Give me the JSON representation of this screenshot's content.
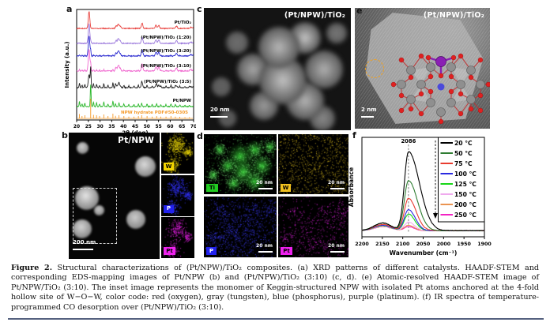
{
  "page": {
    "caption_label": "Figure 2.",
    "caption_text": " Structural characterizations of (Pt/NPW)/TiO₂ composites. (a) XRD patterns of different catalysts. HAADF-STEM and corresponding EDS-mapping images of Pt/NPW (b) and (Pt/NPW)/TiO₂ (3:10) (c, d). (e) Atomic-resolved HAADF-STEM image of Pt/NPW/TiO₂ (3:10). The inset image represents the monomer of Keggin-structured NPW with isolated Pt atoms anchored at the 4-fold hollow site of W−O−W, color code: red (oxygen), gray (tungsten), blue (phosphorus), purple (platinum). (f) IR spectra of temperature-programmed CO desorption over (Pt/NPW)/TiO₂ (3:10).",
    "rule_color": "#55617f"
  },
  "panels": {
    "a": {
      "letter": "a",
      "xlabel": "2θ (deg)",
      "ylabel": "Intensity (a.u.)",
      "xticks": [
        "20",
        "25",
        "30",
        "35",
        "40",
        "45",
        "50",
        "55",
        "60",
        "65",
        "70"
      ]
    },
    "b": {
      "letter": "b",
      "title": "Pt/NPW",
      "scalebar": "200 nm",
      "insets": [
        {
          "label": "W",
          "badge_bg": "#f2d400",
          "badge_fg": "#000000",
          "dot_color": "#e6d20a"
        },
        {
          "label": "P",
          "badge_bg": "#2222ee",
          "badge_fg": "#ffffff",
          "dot_color": "#3434ff"
        },
        {
          "label": "Pt",
          "badge_bg": "#ee22ee",
          "badge_fg": "#000000",
          "dot_color": "#e020e0"
        }
      ]
    },
    "c": {
      "letter": "c",
      "title": "(Pt/NPW)/TiO₂",
      "scalebar": "20 nm"
    },
    "d": {
      "letter": "d",
      "maps": [
        {
          "label": "Ti",
          "badge_bg": "#22cc22",
          "badge_fg": "#000000",
          "dot_color": "#32c832",
          "scalebar": "20 nm",
          "style": "field"
        },
        {
          "label": "W",
          "badge_bg": "#f0c020",
          "badge_fg": "#000000",
          "dot_color": "#dcbc1e",
          "scalebar": "20 nm",
          "style": "sparse"
        },
        {
          "label": "P",
          "badge_bg": "#2222ee",
          "badge_fg": "#ffffff",
          "dot_color": "#3c3cff",
          "scalebar": "20 nm",
          "style": "cluster"
        },
        {
          "label": "Pt",
          "badge_bg": "#ee22ee",
          "badge_fg": "#000000",
          "dot_color": "#dd22dd",
          "scalebar": "20 nm",
          "style": "cluster-sparse"
        }
      ]
    },
    "e": {
      "letter": "e",
      "title": "(Pt/NPW)/TiO₂",
      "scalebar": "2 nm",
      "color_code": {
        "oxygen": "#e02020",
        "tungsten": "#8f8f8f",
        "phosphorus": "#4040e0",
        "platinum": "#8a1fb4"
      }
    },
    "f": {
      "letter": "f",
      "xlabel": "Wavenumber (cm⁻¹)",
      "ylabel": "Absorbance",
      "peak_label": "2086",
      "xticks": [
        "2200",
        "2150",
        "2100",
        "2050",
        "2000",
        "1950",
        "1900"
      ]
    }
  },
  "chart_data": [
    {
      "type": "line",
      "panel": "a",
      "title": "XRD patterns of different catalysts",
      "xlabel": "2θ (deg)",
      "ylabel": "Intensity (a.u.)",
      "xlim": [
        20,
        70
      ],
      "grid": false,
      "peak_sets": {
        "anatase": [
          [
            25.3,
            100
          ],
          [
            36.9,
            14
          ],
          [
            37.8,
            24
          ],
          [
            38.6,
            13
          ],
          [
            48.0,
            30
          ],
          [
            53.9,
            19
          ],
          [
            55.1,
            18
          ],
          [
            62.7,
            14
          ],
          [
            68.8,
            8
          ],
          [
            70.0,
            7
          ]
        ],
        "npw": [
          [
            21.2,
            22
          ],
          [
            22.3,
            12
          ],
          [
            23.5,
            16
          ],
          [
            26.0,
            100
          ],
          [
            27.2,
            18
          ],
          [
            28.5,
            16
          ],
          [
            29.8,
            12
          ],
          [
            31.6,
            20
          ],
          [
            33.4,
            12
          ],
          [
            35.5,
            24
          ],
          [
            36.6,
            13
          ],
          [
            38.1,
            16
          ],
          [
            40.2,
            12
          ],
          [
            42.3,
            9
          ],
          [
            44.5,
            9
          ],
          [
            46.4,
            12
          ],
          [
            47.8,
            16
          ],
          [
            50.1,
            12
          ],
          [
            52.3,
            9
          ],
          [
            54.2,
            12
          ],
          [
            56.0,
            9
          ],
          [
            58.2,
            9
          ],
          [
            60.3,
            12
          ],
          [
            62.2,
            9
          ],
          [
            64.1,
            8
          ],
          [
            66.3,
            6
          ],
          [
            68.2,
            6
          ]
        ]
      },
      "series": [
        {
          "name": "Pt/TiO₂",
          "color": "#e8403c",
          "anatase": 0.72,
          "npw": 0,
          "style": "line"
        },
        {
          "name": "(Pt/NPW)/TiO₂ (1:20)",
          "color": "#9b79dc",
          "anatase": 0.82,
          "npw": 0.1,
          "style": "line"
        },
        {
          "name": "(Pt/NPW)/TiO₂ (3:20)",
          "color": "#2b2bd0",
          "anatase": 0.85,
          "npw": 0.25,
          "style": "line"
        },
        {
          "name": "(Pt/NPW)/TiO₂ (3:10)",
          "color": "#f06ad0",
          "anatase": 0.92,
          "npw": 0.35,
          "style": "line"
        },
        {
          "name": "(Pt/NPW)/TiO₂ (3:5)",
          "color": "#222222",
          "anatase": 0.55,
          "npw": 0.95,
          "style": "line"
        },
        {
          "name": "Pt/NPW",
          "color": "#2db82d",
          "anatase": 0,
          "npw": 1.08,
          "style": "line"
        },
        {
          "name": "NPW hydrate PDF#50-0305",
          "color": "#f59a2a",
          "anatase": 0,
          "npw": 0.96,
          "style": "stick"
        }
      ]
    },
    {
      "type": "line",
      "panel": "f",
      "xlabel": "Wavenumber (cm⁻¹)",
      "ylabel": "Absorbance",
      "x_range_reversed": [
        2200,
        1900
      ],
      "peak_position_cm": 2086,
      "legend_position": "top-right",
      "grid": false,
      "series": [
        {
          "name": "20 °C",
          "color": "#000000",
          "peak_absorbance": 0.98
        },
        {
          "name": "50 °C",
          "color": "#2f7d32",
          "peak_absorbance": 0.62
        },
        {
          "name": "75 °C",
          "color": "#e83c30",
          "peak_absorbance": 0.4
        },
        {
          "name": "100 °C",
          "color": "#2a2ae0",
          "peak_absorbance": 0.26
        },
        {
          "name": "125 °C",
          "color": "#17d617",
          "peak_absorbance": 0.205
        },
        {
          "name": "150 °C",
          "color": "#f0aaee",
          "peak_absorbance": 0.105
        },
        {
          "name": "200 °C",
          "color": "#ea9451",
          "peak_absorbance": 0.065
        },
        {
          "name": "250 °C",
          "color": "#f323c3",
          "peak_absorbance": 0.05
        }
      ]
    }
  ]
}
